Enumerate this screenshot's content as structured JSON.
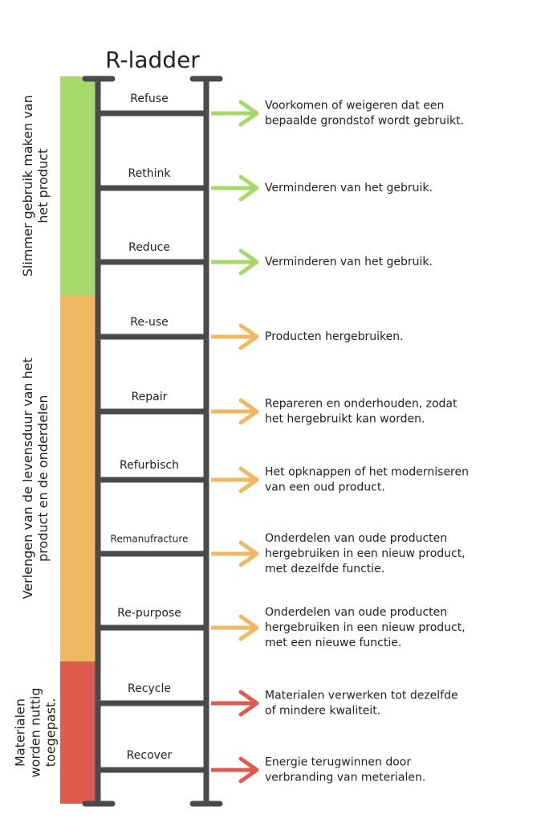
{
  "title": "R-ladder",
  "groups": [
    {
      "label": [
        "Slimmer gebruik maken van",
        "het product"
      ],
      "color": "#a6d96a",
      "rungs": [
        {
          "label": "Refuse",
          "description": [
            "Voorkomen of weigeren dat een",
            "bepaalde grondstof wordt gebruikt."
          ]
        },
        {
          "label": "Rethink",
          "description": [
            "Verminderen van het gebruik."
          ]
        },
        {
          "label": "Reduce",
          "description": [
            "Verminderen van het gebruik."
          ]
        }
      ]
    },
    {
      "label": [
        "Verlengen van de levensduur van het",
        "product en de onderdelen"
      ],
      "color": "#f0b860",
      "rungs": [
        {
          "label": "Re-use",
          "description": [
            "Producten hergebruiken."
          ]
        },
        {
          "label": "Repair",
          "description": [
            "Repareren en onderhouden, zodat",
            "het hergebruikt kan worden."
          ]
        },
        {
          "label": "Refurbisch",
          "description": [
            "Het opknappen of het moderniseren",
            "van een oud product."
          ]
        },
        {
          "label": "Remanufracture",
          "description": [
            "Onderdelen van oude producten",
            "hergebruiken in een nieuw product,",
            "met dezelfde functie."
          ]
        },
        {
          "label": "Re-purpose",
          "description": [
            "Onderdelen van oude producten",
            "hergebruiken in een nieuw product,",
            "met een nieuwe functie."
          ]
        }
      ]
    },
    {
      "label": [
        "Materialen",
        "worden nuttig",
        "toegepast."
      ],
      "color": "#e05a50",
      "rungs": [
        {
          "label": "Recycle",
          "description": [
            "Materialen verwerken tot dezelfde",
            "of mindere kwaliteit."
          ]
        },
        {
          "label": "Recover",
          "description": [
            "Energie terugwinnen door",
            "verbranding van meterialen."
          ]
        }
      ]
    }
  ]
}
